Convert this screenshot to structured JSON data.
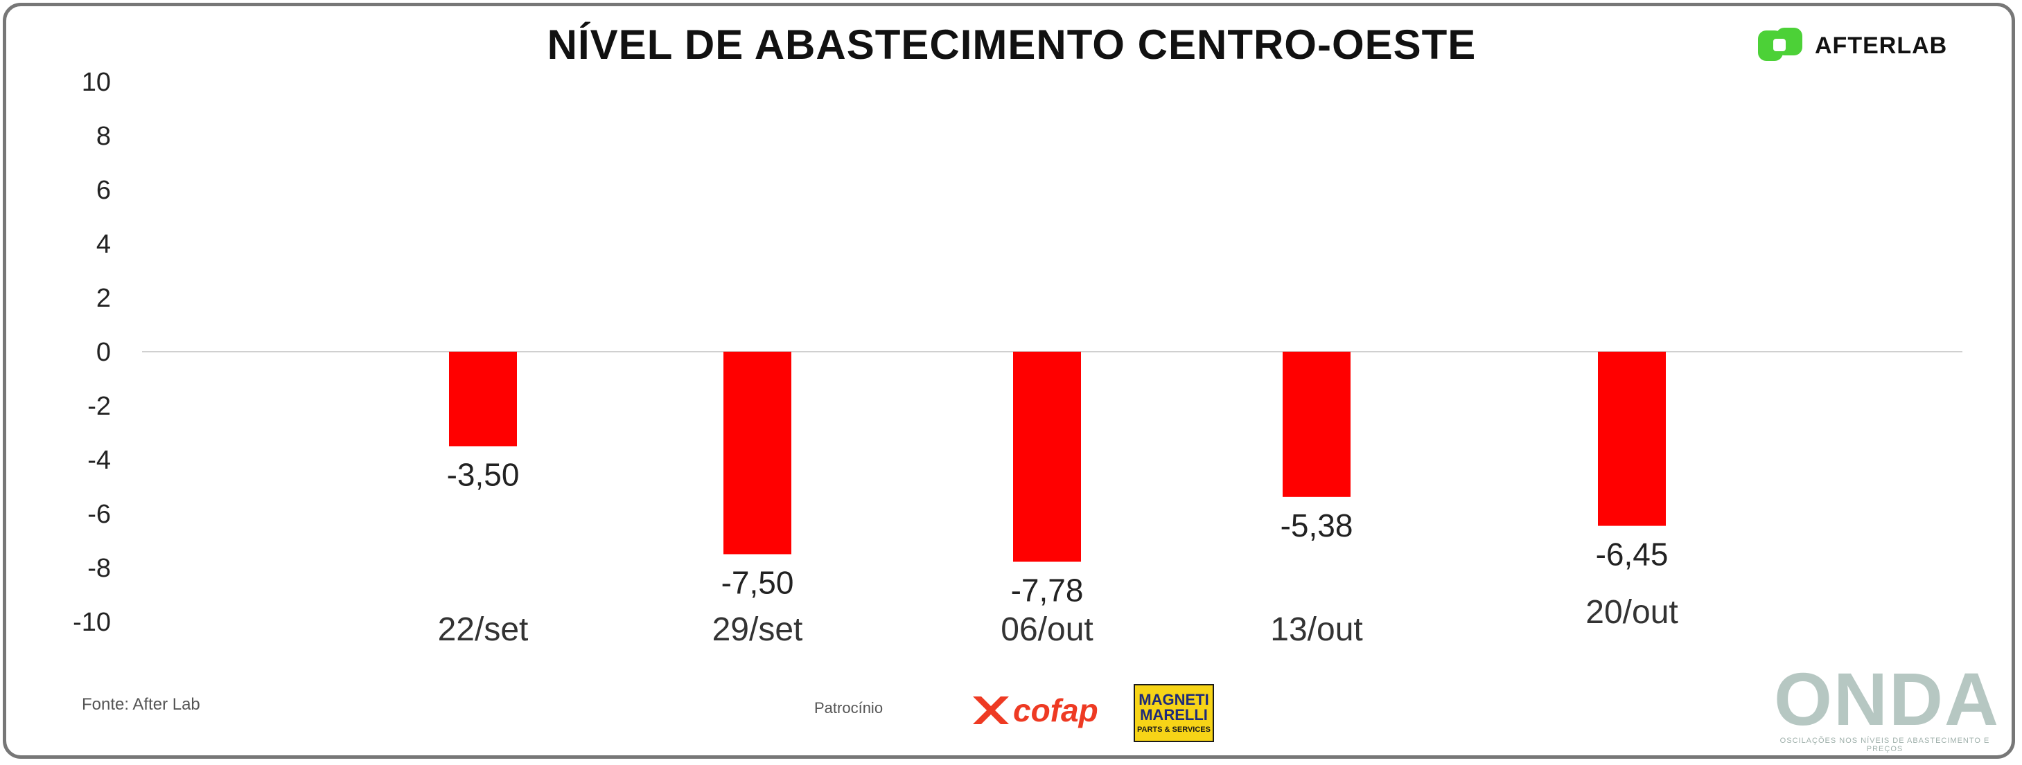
{
  "header": {
    "title": "NÍVEL DE ABASTECIMENTO CENTRO-OESTE",
    "brand": "AFTERLAB"
  },
  "footer": {
    "source": "Fonte: After Lab",
    "sponsor_label": "Patrocínio",
    "sponsor_cofap": "cofap",
    "sponsor_magneti": "MAGNETI MARELLI",
    "sponsor_magneti_sub": "PARTS & SERVICES",
    "onda": "ONDA",
    "onda_tagline": "OSCILAÇÕES NOS NÍVEIS DE ABASTECIMENTO E PREÇOS"
  },
  "colors": {
    "bar": "#ff0000",
    "brand_green": "#4cd137",
    "cofap_red": "#ee3a23",
    "axis_line": "#d0d0d0"
  },
  "chart_data": {
    "type": "bar",
    "title": "NÍVEL DE ABASTECIMENTO CENTRO-OESTE",
    "categories": [
      "22/set",
      "29/set",
      "06/out",
      "13/out",
      "20/out"
    ],
    "values": [
      -3.5,
      -7.5,
      -7.78,
      -5.38,
      -6.45
    ],
    "value_labels": [
      "-3,50",
      "-7,50",
      "-7,78",
      "-5,38",
      "-6,45"
    ],
    "ylim": [
      -10,
      10
    ],
    "yticks": [
      10,
      8,
      6,
      4,
      2,
      0,
      -2,
      -4,
      -6,
      -8,
      -10
    ],
    "grid": false,
    "legend": "none"
  }
}
